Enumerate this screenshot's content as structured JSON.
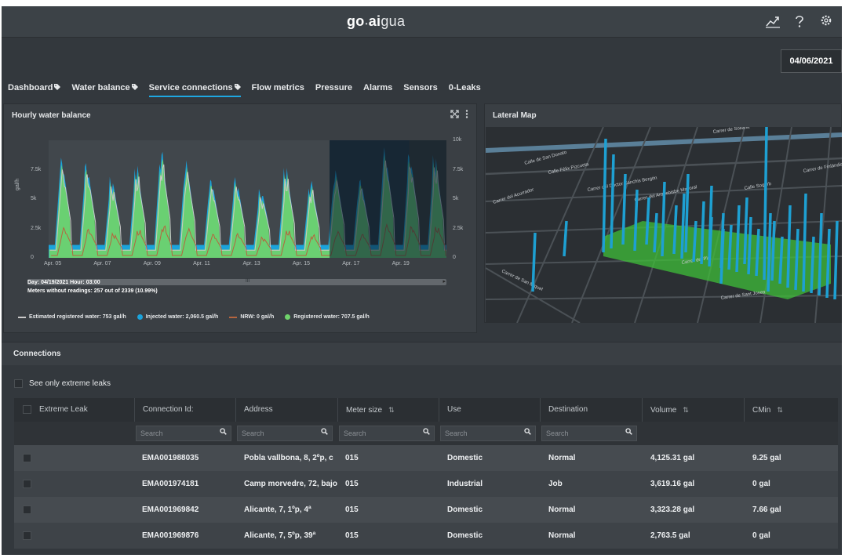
{
  "header": {
    "logo_left": "go",
    "logo_dot": "•",
    "logo_mid": "ai",
    "logo_right": "gua",
    "icons": [
      "trend-chart-icon",
      "help-icon",
      "settings-icon"
    ]
  },
  "date": "04/06/2021",
  "tabs": [
    {
      "label": "Dashboard",
      "tagged": true,
      "active": false
    },
    {
      "label": "Water balance",
      "tagged": true,
      "active": false
    },
    {
      "label": "Service connections",
      "tagged": true,
      "active": true
    },
    {
      "label": "Flow metrics",
      "tagged": false,
      "active": false
    },
    {
      "label": "Pressure",
      "tagged": false,
      "active": false
    },
    {
      "label": "Alarms",
      "tagged": false,
      "active": false
    },
    {
      "label": "Sensors",
      "tagged": false,
      "active": false
    },
    {
      "label": "0-Leaks",
      "tagged": false,
      "active": false
    }
  ],
  "balance_panel": {
    "title": "Hourly water balance",
    "ylabel": "gal/h",
    "day_info": "Day: 04/19/2021 Hour: 03:00",
    "meters_info": "Meters without readings: 257 out of 2339 (10.99%)",
    "scroll_grip": "III",
    "scroll_arrow": "▸"
  },
  "chart_data": {
    "type": "area",
    "x_tick_labels": [
      "Apr. 05",
      "Apr. 07",
      "Apr. 09",
      "Apr. 11",
      "Apr. 13",
      "Apr. 15",
      "Apr. 17",
      "Apr. 19"
    ],
    "y_left_ticks": [
      "0",
      "2.5k",
      "5k",
      "7.5k"
    ],
    "y_right_ticks": [
      "0",
      "2.5k",
      "5k",
      "7.5k",
      "10k"
    ],
    "ylabel": "gal/h",
    "ylim": [
      0,
      10000
    ],
    "x_range_days": [
      0,
      16
    ],
    "series": [
      {
        "name": "Estimated registered water",
        "legend_value": "753 gal/h",
        "color": "#c9c9c9",
        "kind": "line"
      },
      {
        "name": "Injected water",
        "legend_value": "2,060.5 gal/h",
        "color": "#1aa3dc",
        "kind": "area"
      },
      {
        "name": "NRW",
        "legend_value": "0 gal/h",
        "color": "#b5653f",
        "kind": "line"
      },
      {
        "name": "Registered water",
        "legend_value": "707.5 gal/h",
        "color": "#6fd36b",
        "kind": "area"
      }
    ],
    "daily_peaks": [
      8600,
      8200,
      6900,
      7900,
      9200,
      8300,
      6800,
      6900,
      5900,
      7800,
      6600,
      7500,
      6800,
      9400,
      9000,
      8800,
      6400
    ],
    "legend_placement": "bottom"
  },
  "legend": [
    {
      "label": "Estimated registered water: 753 gal/h",
      "color": "#c9c9c9",
      "marker": "line"
    },
    {
      "label": "Injected water: 2,060.5 gal/h",
      "color": "#1aa3dc",
      "marker": "dot"
    },
    {
      "label": "NRW: 0 gal/h",
      "color": "#b5653f",
      "marker": "line"
    },
    {
      "label": "Registered water: 707.5 gal/h",
      "color": "#6fd36b",
      "marker": "dot"
    }
  ],
  "map_panel": {
    "title": "Lateral Map",
    "streets": [
      "Carrer de Sollana",
      "Calle de San Donato",
      "Calle Félix Pizcueta",
      "Carrer del Doctor Sanchis Bergón",
      "Carrer del Arquebisbe Mayoral",
      "Calle Sogorb",
      "Carrer de Finlàndia",
      "Carrer del Acurrador",
      "Carrer de San Miquel",
      "Carrer de Sant Josep",
      "Carrer del Pla"
    ],
    "zone_color": "#3fbf3a",
    "bar_color": "#1ea0d2"
  },
  "connections": {
    "title": "Connections",
    "extreme_toggle_label": "See only extreme leaks",
    "columns": [
      {
        "label": "Extreme Leak",
        "sortable": false
      },
      {
        "label": "Connection Id:",
        "sortable": false
      },
      {
        "label": "Address",
        "sortable": false
      },
      {
        "label": "Meter size",
        "sortable": true
      },
      {
        "label": "Use",
        "sortable": false
      },
      {
        "label": "Destination",
        "sortable": false
      },
      {
        "label": "Volume",
        "sortable": true
      },
      {
        "label": "CMin",
        "sortable": true
      }
    ],
    "search_placeholder": "Search",
    "rows": [
      {
        "id": "EMA001988035",
        "address": "Pobla vallbona, 8, 2ºp, c",
        "meter_size": "015",
        "use": "Domestic",
        "destination": "Normal",
        "volume": "4,125.31 gal",
        "cmin": "9.25 gal"
      },
      {
        "id": "EMA001974181",
        "address": "Camp morvedre, 72, bajo",
        "meter_size": "015",
        "use": "Industrial",
        "destination": "Job",
        "volume": "3,619.16 gal",
        "cmin": "0 gal"
      },
      {
        "id": "EMA001969842",
        "address": "Alicante, 7, 1ºp, 4ª",
        "meter_size": "015",
        "use": "Domestic",
        "destination": "Normal",
        "volume": "3,323.28 gal",
        "cmin": "7.66 gal"
      },
      {
        "id": "EMA001969876",
        "address": "Alicante, 7, 5ºp, 39ª",
        "meter_size": "015",
        "use": "Domestic",
        "destination": "Normal",
        "volume": "2,763.5 gal",
        "cmin": "0 gal"
      }
    ]
  }
}
